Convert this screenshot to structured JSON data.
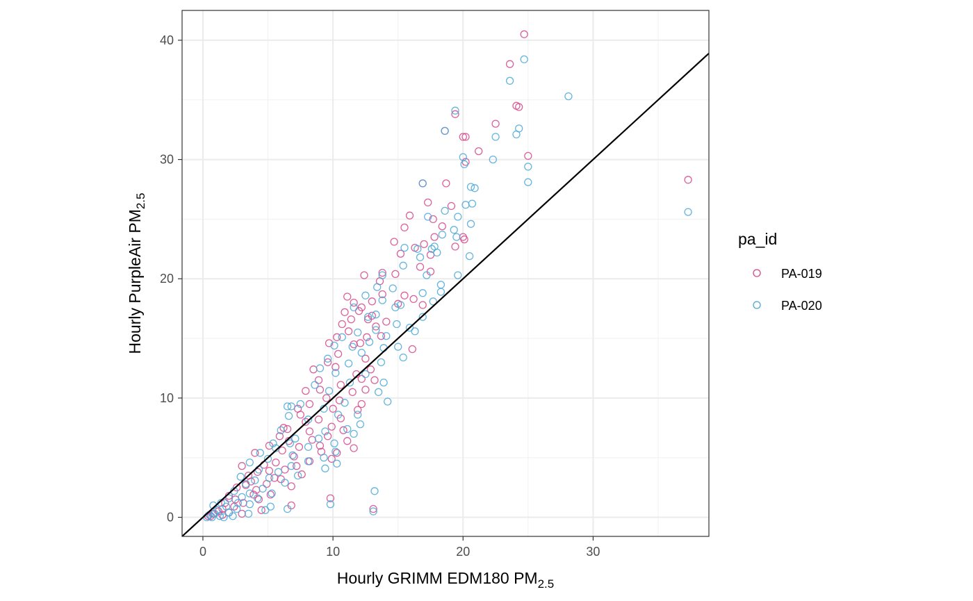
{
  "chart_data": {
    "type": "scatter",
    "title": "",
    "xlabel": {
      "main": "Hourly GRIMM EDM180 PM",
      "sub": "2.5"
    },
    "ylabel": {
      "main": "Hourly PurpleAir PM",
      "sub": "2.5"
    },
    "xlim": [
      -1.6,
      38.9
    ],
    "ylim": [
      -1.6,
      42.5
    ],
    "x_ticks": [
      0,
      10,
      20,
      30
    ],
    "y_ticks": [
      0,
      10,
      20,
      30,
      40
    ],
    "x_tick_labels": [
      "0",
      "10",
      "20",
      "30"
    ],
    "y_tick_labels": [
      "0",
      "10",
      "20",
      "30",
      "40"
    ],
    "grid": true,
    "reference_line": {
      "type": "y=x",
      "color": "#000000"
    },
    "legend": {
      "title": "pa_id",
      "position": "right"
    },
    "series": [
      {
        "name": "PA-019",
        "color": "#d6458a",
        "points": [
          [
            24.7,
            40.5
          ],
          [
            23.6,
            38.0
          ],
          [
            24.1,
            34.5
          ],
          [
            24.3,
            34.4
          ],
          [
            19.4,
            33.8
          ],
          [
            22.5,
            33.0
          ],
          [
            18.6,
            32.4
          ],
          [
            20.0,
            31.9
          ],
          [
            20.2,
            31.9
          ],
          [
            21.2,
            30.7
          ],
          [
            25.0,
            30.3
          ],
          [
            20.2,
            29.8
          ],
          [
            37.3,
            28.3
          ],
          [
            16.9,
            28.0
          ],
          [
            18.7,
            28.0
          ],
          [
            17.3,
            26.4
          ],
          [
            19.1,
            26.1
          ],
          [
            15.9,
            25.3
          ],
          [
            17.7,
            25.0
          ],
          [
            18.4,
            24.4
          ],
          [
            15.5,
            24.3
          ],
          [
            20.0,
            23.5
          ],
          [
            17.8,
            23.5
          ],
          [
            20.1,
            23.3
          ],
          [
            14.7,
            23.1
          ],
          [
            17.0,
            22.9
          ],
          [
            16.3,
            22.6
          ],
          [
            19.4,
            22.7
          ],
          [
            15.2,
            22.1
          ],
          [
            17.5,
            22.0
          ],
          [
            16.7,
            21.0
          ],
          [
            13.8,
            20.5
          ],
          [
            13.6,
            19.8
          ],
          [
            14.8,
            20.4
          ],
          [
            17.5,
            20.6
          ],
          [
            12.4,
            20.3
          ],
          [
            13.8,
            18.7
          ],
          [
            11.1,
            18.5
          ],
          [
            15.5,
            18.6
          ],
          [
            16.2,
            18.3
          ],
          [
            13.0,
            18.1
          ],
          [
            11.6,
            18.0
          ],
          [
            15.0,
            17.9
          ],
          [
            16.9,
            17.8
          ],
          [
            12.2,
            17.6
          ],
          [
            12.0,
            17.3
          ],
          [
            10.9,
            17.2
          ],
          [
            13.0,
            16.9
          ],
          [
            11.4,
            16.6
          ],
          [
            10.7,
            16.2
          ],
          [
            12.7,
            16.6
          ],
          [
            14.1,
            16.4
          ],
          [
            13.3,
            16.0
          ],
          [
            16.1,
            14.1
          ],
          [
            11.2,
            15.6
          ],
          [
            10.3,
            15.1
          ],
          [
            12.6,
            15.1
          ],
          [
            9.7,
            14.6
          ],
          [
            13.7,
            15.2
          ],
          [
            11.6,
            14.5
          ],
          [
            12.1,
            14.6
          ],
          [
            10.4,
            13.7
          ],
          [
            12.5,
            13.3
          ],
          [
            9.6,
            13.0
          ],
          [
            12.9,
            12.4
          ],
          [
            8.5,
            12.4
          ],
          [
            10.2,
            12.6
          ],
          [
            12.2,
            11.6
          ],
          [
            11.8,
            12.0
          ],
          [
            8.9,
            11.5
          ],
          [
            13.2,
            11.5
          ],
          [
            10.6,
            11.1
          ],
          [
            9.0,
            10.7
          ],
          [
            12.5,
            10.7
          ],
          [
            7.9,
            10.6
          ],
          [
            11.5,
            10.5
          ],
          [
            9.5,
            10.0
          ],
          [
            8.2,
            9.5
          ],
          [
            10.5,
            9.8
          ],
          [
            12.2,
            9.5
          ],
          [
            7.3,
            9.1
          ],
          [
            10.0,
            9.1
          ],
          [
            11.9,
            9.0
          ],
          [
            7.5,
            8.6
          ],
          [
            8.9,
            8.2
          ],
          [
            10.6,
            8.3
          ],
          [
            7.9,
            8.0
          ],
          [
            9.9,
            7.6
          ],
          [
            6.2,
            7.5
          ],
          [
            6.5,
            7.4
          ],
          [
            8.2,
            7.2
          ],
          [
            10.8,
            7.3
          ],
          [
            9.6,
            6.8
          ],
          [
            5.9,
            6.8
          ],
          [
            6.6,
            6.4
          ],
          [
            8.4,
            6.5
          ],
          [
            11.1,
            6.4
          ],
          [
            9.0,
            6.0
          ],
          [
            7.4,
            5.9
          ],
          [
            11.6,
            5.8
          ],
          [
            5.1,
            6.0
          ],
          [
            6.1,
            5.6
          ],
          [
            9.1,
            5.5
          ],
          [
            4.0,
            5.4
          ],
          [
            10.3,
            5.4
          ],
          [
            7.0,
            5.1
          ],
          [
            8.2,
            4.7
          ],
          [
            9.9,
            4.9
          ],
          [
            5.6,
            4.6
          ],
          [
            4.7,
            4.4
          ],
          [
            7.2,
            4.3
          ],
          [
            3.0,
            4.3
          ],
          [
            6.3,
            4.0
          ],
          [
            5.1,
            3.9
          ],
          [
            7.6,
            3.6
          ],
          [
            4.2,
            3.8
          ],
          [
            3.5,
            3.5
          ],
          [
            6.0,
            3.2
          ],
          [
            5.5,
            3.3
          ],
          [
            3.7,
            3.0
          ],
          [
            4.9,
            2.8
          ],
          [
            2.6,
            2.5
          ],
          [
            3.3,
            2.7
          ],
          [
            6.8,
            2.6
          ],
          [
            4.1,
            2.3
          ],
          [
            2.0,
            1.8
          ],
          [
            3.9,
            1.9
          ],
          [
            5.2,
            1.9
          ],
          [
            2.5,
            1.5
          ],
          [
            4.3,
            1.5
          ],
          [
            1.7,
            1.2
          ],
          [
            3.1,
            1.2
          ],
          [
            6.8,
            1.0
          ],
          [
            2.4,
            0.9
          ],
          [
            1.5,
            0.7
          ],
          [
            9.8,
            1.6
          ],
          [
            13.1,
            0.7
          ],
          [
            4.5,
            0.6
          ],
          [
            1.2,
            0.5
          ],
          [
            2.0,
            0.4
          ],
          [
            0.8,
            0.3
          ],
          [
            1.5,
            0.2
          ],
          [
            0.6,
            0.1
          ],
          [
            3.0,
            0.3
          ],
          [
            0.4,
            0.1
          ]
        ]
      },
      {
        "name": "PA-020",
        "color": "#4aa8d8",
        "points": [
          [
            24.7,
            38.4
          ],
          [
            23.6,
            36.6
          ],
          [
            28.1,
            35.3
          ],
          [
            19.4,
            34.1
          ],
          [
            24.3,
            32.6
          ],
          [
            24.1,
            32.1
          ],
          [
            22.5,
            31.9
          ],
          [
            18.6,
            32.4
          ],
          [
            20.0,
            30.2
          ],
          [
            20.1,
            29.6
          ],
          [
            25.0,
            29.4
          ],
          [
            22.3,
            30.0
          ],
          [
            25.0,
            28.1
          ],
          [
            16.9,
            28.0
          ],
          [
            20.6,
            27.7
          ],
          [
            20.9,
            27.6
          ],
          [
            20.2,
            26.2
          ],
          [
            20.7,
            26.3
          ],
          [
            18.6,
            25.7
          ],
          [
            19.6,
            25.2
          ],
          [
            37.3,
            25.6
          ],
          [
            17.3,
            25.2
          ],
          [
            20.6,
            24.6
          ],
          [
            19.3,
            24.1
          ],
          [
            18.4,
            23.7
          ],
          [
            17.8,
            22.7
          ],
          [
            19.5,
            23.5
          ],
          [
            16.5,
            22.5
          ],
          [
            15.5,
            22.6
          ],
          [
            16.7,
            21.8
          ],
          [
            18.0,
            22.2
          ],
          [
            17.6,
            22.5
          ],
          [
            20.5,
            21.9
          ],
          [
            15.4,
            21.1
          ],
          [
            17.2,
            20.3
          ],
          [
            19.6,
            20.3
          ],
          [
            13.8,
            20.3
          ],
          [
            18.3,
            19.5
          ],
          [
            13.4,
            19.3
          ],
          [
            14.6,
            19.2
          ],
          [
            18.3,
            18.9
          ],
          [
            16.9,
            18.8
          ],
          [
            12.5,
            18.6
          ],
          [
            17.7,
            18.1
          ],
          [
            13.8,
            18.2
          ],
          [
            15.2,
            17.8
          ],
          [
            14.8,
            17.6
          ],
          [
            11.6,
            17.6
          ],
          [
            16.9,
            16.8
          ],
          [
            12.7,
            16.8
          ],
          [
            13.3,
            17.0
          ],
          [
            15.9,
            15.9
          ],
          [
            14.9,
            16.2
          ],
          [
            16.3,
            15.6
          ],
          [
            13.3,
            15.7
          ],
          [
            11.9,
            15.5
          ],
          [
            14.1,
            15.2
          ],
          [
            10.7,
            15.1
          ],
          [
            12.8,
            14.7
          ],
          [
            15.0,
            14.3
          ],
          [
            13.9,
            14.2
          ],
          [
            10.1,
            14.4
          ],
          [
            11.5,
            14.3
          ],
          [
            15.4,
            13.4
          ],
          [
            12.2,
            13.8
          ],
          [
            9.6,
            13.3
          ],
          [
            13.7,
            13.0
          ],
          [
            11.2,
            12.9
          ],
          [
            9.0,
            12.5
          ],
          [
            12.5,
            12.0
          ],
          [
            10.2,
            12.1
          ],
          [
            13.9,
            11.3
          ],
          [
            11.3,
            11.3
          ],
          [
            8.6,
            11.1
          ],
          [
            13.5,
            10.5
          ],
          [
            9.7,
            10.6
          ],
          [
            10.9,
            9.6
          ],
          [
            14.2,
            9.7
          ],
          [
            7.5,
            9.5
          ],
          [
            6.5,
            9.3
          ],
          [
            6.8,
            9.3
          ],
          [
            9.3,
            9.1
          ],
          [
            11.9,
            8.6
          ],
          [
            12.1,
            7.8
          ],
          [
            10.4,
            8.6
          ],
          [
            8.1,
            8.2
          ],
          [
            6.6,
            8.5
          ],
          [
            11.1,
            7.4
          ],
          [
            9.4,
            7.2
          ],
          [
            6.0,
            7.3
          ],
          [
            11.6,
            7.0
          ],
          [
            8.9,
            6.6
          ],
          [
            7.1,
            6.6
          ],
          [
            5.4,
            6.2
          ],
          [
            10.1,
            6.2
          ],
          [
            6.7,
            6.2
          ],
          [
            8.1,
            5.9
          ],
          [
            10.2,
            5.5
          ],
          [
            5.6,
            5.8
          ],
          [
            4.4,
            5.4
          ],
          [
            9.3,
            5.0
          ],
          [
            6.9,
            5.2
          ],
          [
            10.3,
            4.5
          ],
          [
            8.1,
            4.7
          ],
          [
            5.0,
            4.9
          ],
          [
            9.4,
            4.1
          ],
          [
            6.8,
            4.3
          ],
          [
            3.6,
            4.6
          ],
          [
            5.8,
            3.8
          ],
          [
            4.3,
            4.0
          ],
          [
            7.3,
            3.5
          ],
          [
            2.9,
            3.4
          ],
          [
            5.1,
            3.3
          ],
          [
            4.0,
            3.1
          ],
          [
            6.3,
            2.9
          ],
          [
            3.3,
            2.8
          ],
          [
            2.4,
            2.2
          ],
          [
            4.6,
            2.4
          ],
          [
            3.6,
            2.0
          ],
          [
            5.3,
            2.0
          ],
          [
            2.0,
            1.6
          ],
          [
            3.0,
            1.7
          ],
          [
            4.2,
            1.6
          ],
          [
            1.4,
            1.2
          ],
          [
            2.7,
            1.2
          ],
          [
            3.6,
            1.1
          ],
          [
            5.2,
            0.9
          ],
          [
            9.8,
            1.1
          ],
          [
            13.2,
            2.2
          ],
          [
            0.8,
            1.0
          ],
          [
            1.8,
            0.9
          ],
          [
            2.6,
            0.7
          ],
          [
            6.5,
            0.7
          ],
          [
            1.1,
            0.6
          ],
          [
            4.8,
            0.6
          ],
          [
            13.1,
            0.5
          ],
          [
            2.0,
            0.4
          ],
          [
            0.9,
            0.3
          ],
          [
            3.5,
            0.3
          ],
          [
            0.5,
            0.2
          ],
          [
            1.3,
            0.1
          ],
          [
            2.3,
            0.1
          ],
          [
            0.3,
            0.0
          ],
          [
            0.7,
            0.0
          ],
          [
            1.6,
            0.0
          ]
        ]
      }
    ]
  }
}
